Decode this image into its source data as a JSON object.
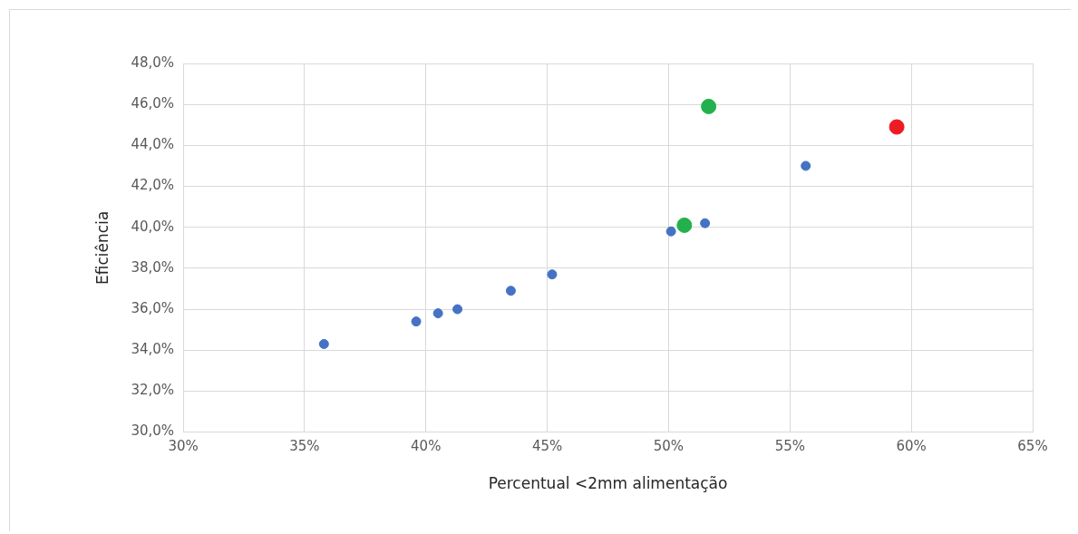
{
  "chart_data": {
    "type": "scatter",
    "xlabel": "Percentual <2mm alimentação",
    "ylabel": "Eficiência",
    "xlim": [
      30,
      65
    ],
    "xticks": [
      {
        "value": 30,
        "label": "30%"
      },
      {
        "value": 35,
        "label": "35%"
      },
      {
        "value": 40,
        "label": "40%"
      },
      {
        "value": 45,
        "label": "45%"
      },
      {
        "value": 50,
        "label": "50%"
      },
      {
        "value": 55,
        "label": "55%"
      },
      {
        "value": 60,
        "label": "60%"
      },
      {
        "value": 65,
        "label": "65%"
      }
    ],
    "ylim": [
      30,
      48
    ],
    "yticks": [
      {
        "value": 30,
        "label": "30,0%"
      },
      {
        "value": 32,
        "label": "32,0%"
      },
      {
        "value": 34,
        "label": "34,0%"
      },
      {
        "value": 36,
        "label": "36,0%"
      },
      {
        "value": 38,
        "label": "38,0%"
      },
      {
        "value": 40,
        "label": "40,0%"
      },
      {
        "value": 42,
        "label": "42,0%"
      },
      {
        "value": 44,
        "label": "44,0%"
      },
      {
        "value": 46,
        "label": "46,0%"
      },
      {
        "value": 48,
        "label": "48,0%"
      }
    ],
    "grid": true,
    "marker": "circle",
    "series": [
      {
        "color": "#4472c4",
        "x": [
          35.8,
          39.6,
          40.5,
          41.3,
          43.5,
          45.2,
          50.1,
          51.5,
          55.65
        ],
        "values": [
          34.3,
          35.4,
          35.8,
          36.0,
          36.9,
          37.7,
          39.8,
          40.2,
          43.0
        ]
      },
      {
        "color": "#22b14c",
        "x": [
          50.65,
          51.65
        ],
        "values": [
          40.1,
          45.9
        ]
      },
      {
        "color": "#ed1c24",
        "x": [
          59.4
        ],
        "values": [
          44.9
        ]
      }
    ]
  }
}
